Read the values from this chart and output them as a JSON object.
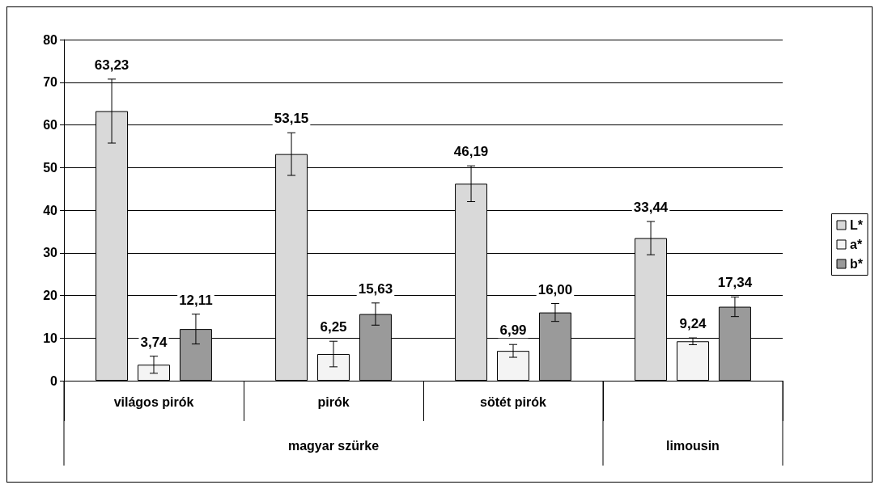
{
  "chart_data": {
    "type": "bar",
    "categories": [
      "világos pirók",
      "pirók",
      "sötét pirók",
      null
    ],
    "series": [
      {
        "name": "L*",
        "color": "#d9d9d9",
        "values": [
          63.23,
          53.15,
          46.19,
          33.44
        ],
        "value_labels": [
          "63,23",
          "53,15",
          "46,19",
          "33,44"
        ],
        "errors": [
          7.5,
          5,
          4.2,
          3.9
        ]
      },
      {
        "name": "a*",
        "color": "#f4f4f4",
        "values": [
          3.74,
          6.25,
          6.99,
          9.24
        ],
        "value_labels": [
          "3,74",
          "6,25",
          "6,99",
          "9,24"
        ],
        "errors": [
          2,
          3,
          1.5,
          0.8
        ]
      },
      {
        "name": "b*",
        "color": "#9a9a9a",
        "values": [
          12.11,
          15.63,
          16.0,
          17.34
        ],
        "value_labels": [
          "12,11",
          "15,63",
          "16,00",
          "17,34"
        ],
        "errors": [
          3.5,
          2.6,
          2.1,
          2.3
        ]
      }
    ],
    "ylim": [
      0,
      80
    ],
    "yticks": [
      0,
      10,
      20,
      30,
      40,
      50,
      60,
      70,
      80
    ],
    "grid": "y",
    "legend": "right",
    "annotations": [
      "magyar szürke",
      "limousin"
    ]
  }
}
